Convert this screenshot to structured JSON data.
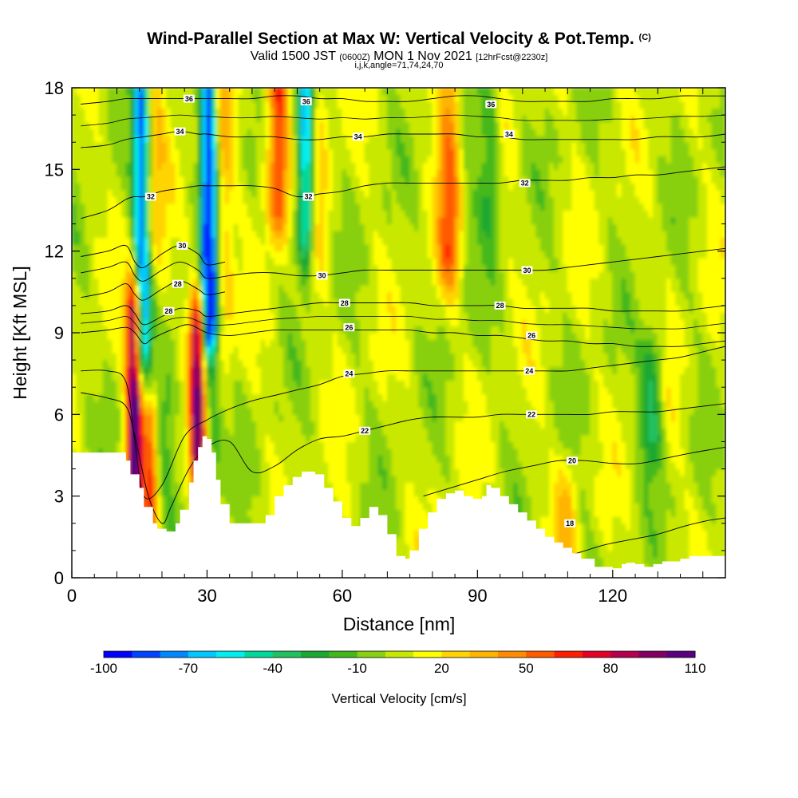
{
  "header": {
    "title_main": "Wind-Parallel Section at Max W: Vertical Velocity & Pot.Temp.",
    "title_mark": "(C)",
    "valid_prefix": "Valid 1500 JST",
    "valid_z": "(0600Z)",
    "valid_date": "MON 1 Nov 2021",
    "valid_fcst": "[12hrFcst@2230z]",
    "indices": "i,j,k,angle=71,74,24,70"
  },
  "colors": {
    "scale": [
      "#0000ff",
      "#0044ff",
      "#0088ff",
      "#00c8ff",
      "#00eeee",
      "#00d89a",
      "#22c060",
      "#1aa830",
      "#44b81a",
      "#88d010",
      "#c8e800",
      "#ffff00",
      "#ffd400",
      "#ffb400",
      "#ff8c00",
      "#ff5a00",
      "#ff1e00",
      "#e60026",
      "#b4004e",
      "#820064",
      "#5a0080"
    ],
    "contour": "#000000",
    "terrain_mask": "#ffffff",
    "panel_border": "#000000"
  },
  "chart_data": {
    "type": "heatmap",
    "xlabel": "Distance [nm]",
    "ylabel": "Height [Kft MSL]",
    "xlim": [
      0,
      145
    ],
    "ylim": [
      0,
      18
    ],
    "x_ticks": [
      0,
      30,
      60,
      90,
      120
    ],
    "y_ticks": [
      0,
      3,
      6,
      9,
      12,
      15,
      18
    ],
    "colorbar": {
      "label": "Vertical Velocity [cm/s]",
      "min": -100,
      "max": 110,
      "step": 10,
      "tick_values": [
        -100,
        -70,
        -40,
        -10,
        20,
        50,
        80,
        110
      ],
      "tick_labels": [
        "-100",
        "-70",
        "-40",
        "-10",
        "20",
        "50",
        "80",
        "110"
      ]
    },
    "updraft_plumes": [
      {
        "x": 14,
        "y0": 2.0,
        "y1": 9.5,
        "w_cm_s": 110
      },
      {
        "x": 17.5,
        "y0": 2.0,
        "y1": 5.5,
        "w_cm_s": 70
      },
      {
        "x": 28,
        "y0": 4.5,
        "y1": 9.0,
        "w_cm_s": 90
      },
      {
        "x": 46,
        "y0": 14.0,
        "y1": 18.0,
        "w_cm_s": 60
      },
      {
        "x": 84,
        "y0": 12.0,
        "y1": 18.0,
        "w_cm_s": 45
      },
      {
        "x": 110,
        "y0": 1.0,
        "y1": 3.0,
        "w_cm_s": 25
      }
    ],
    "downdraft_plumes": [
      {
        "x": 15.5,
        "y0": 9.0,
        "y1": 18.0,
        "w_cm_s": -80
      },
      {
        "x": 30.5,
        "y0": 9.5,
        "y1": 18.0,
        "w_cm_s": -100
      },
      {
        "x": 52,
        "y0": 13.0,
        "y1": 18.0,
        "w_cm_s": -70
      },
      {
        "x": 93,
        "y0": 14.0,
        "y1": 18.0,
        "w_cm_s": -30
      },
      {
        "x": 129,
        "y0": 5.5,
        "y1": 7.5,
        "w_cm_s": -40
      }
    ],
    "terrain_kft": {
      "x": [
        0,
        7,
        12,
        13,
        15,
        16,
        18,
        19,
        21,
        23,
        24,
        26,
        27,
        28,
        29,
        30,
        31,
        32,
        33,
        35,
        40,
        43,
        45,
        47,
        49,
        51,
        54,
        56,
        58,
        60,
        62,
        64,
        66,
        68,
        70,
        72,
        74,
        75,
        77,
        79,
        81,
        83,
        85,
        87,
        89,
        91,
        92,
        93,
        95,
        97,
        99,
        101,
        103,
        105,
        107,
        109,
        111,
        113,
        116,
        120,
        122,
        123,
        125,
        127,
        129,
        131,
        133,
        135,
        137,
        145
      ],
      "y": [
        4.6,
        4.6,
        4.3,
        3.8,
        3.3,
        2.6,
        2.0,
        1.8,
        1.7,
        2.0,
        2.5,
        3.5,
        4.3,
        4.8,
        5.2,
        5.1,
        4.6,
        3.6,
        2.7,
        2.0,
        2.0,
        2.3,
        3.0,
        3.4,
        3.7,
        3.9,
        3.8,
        3.3,
        2.8,
        2.2,
        1.9,
        2.2,
        2.6,
        2.3,
        1.6,
        0.8,
        0.7,
        1.0,
        1.8,
        2.4,
        2.9,
        3.1,
        3.2,
        3.0,
        2.9,
        3.0,
        3.4,
        3.3,
        3.0,
        2.7,
        2.4,
        2.1,
        1.8,
        1.5,
        1.3,
        1.1,
        0.9,
        0.7,
        0.4,
        0.35,
        0.5,
        0.55,
        0.5,
        0.4,
        0.5,
        0.6,
        0.6,
        0.7,
        0.8,
        1.0
      ]
    },
    "theta_contours": [
      {
        "label": "18",
        "x": [
          108,
          112,
          118,
          124,
          130,
          136,
          141,
          145
        ],
        "y": [
          0.8,
          0.9,
          1.2,
          1.4,
          1.6,
          1.9,
          2.1,
          2.2
        ],
        "label_x": 110.5,
        "label_y": 2.0
      },
      {
        "label": "20",
        "x": [
          78,
          84,
          90,
          96,
          102,
          108,
          114,
          120,
          126,
          132,
          138,
          145
        ],
        "y": [
          3.0,
          3.3,
          3.6,
          3.9,
          4.1,
          4.3,
          4.3,
          4.2,
          4.2,
          4.4,
          4.6,
          4.8
        ],
        "label_x": 111,
        "label_y": 4.3
      },
      {
        "label": "22",
        "x": [
          2,
          8,
          12,
          14,
          17,
          20,
          22,
          26,
          30,
          35,
          40,
          45,
          50,
          55,
          60,
          65,
          70,
          75,
          80,
          85,
          90,
          95,
          100,
          105,
          110,
          115,
          120,
          125,
          130,
          135,
          140,
          145
        ],
        "y": [
          6.8,
          6.6,
          6.3,
          5.2,
          3.0,
          2.0,
          2.6,
          4.0,
          4.8,
          5.0,
          3.9,
          4.1,
          4.7,
          5.1,
          5.2,
          5.4,
          5.6,
          5.8,
          5.9,
          5.9,
          5.9,
          6.0,
          6.0,
          6.0,
          6.0,
          6.0,
          6.1,
          6.1,
          6.1,
          6.2,
          6.3,
          6.4
        ],
        "label_x": 65,
        "label_y": 5.4
      },
      {
        "label": "24",
        "x": [
          2,
          8,
          12,
          14,
          16,
          20,
          25,
          30,
          35,
          40,
          45,
          50,
          55,
          60,
          65,
          70,
          75,
          80,
          85,
          90,
          95,
          100,
          105,
          110,
          115,
          120,
          125,
          130,
          135,
          140,
          145
        ],
        "y": [
          7.6,
          7.6,
          7.2,
          5.0,
          3.0,
          3.4,
          5.2,
          5.8,
          6.2,
          6.5,
          6.7,
          6.9,
          7.1,
          7.4,
          7.5,
          7.6,
          7.6,
          7.6,
          7.6,
          7.6,
          7.6,
          7.6,
          7.6,
          7.6,
          7.7,
          7.8,
          7.9,
          8.0,
          8.1,
          8.3,
          8.5
        ],
        "label_x": 61.5,
        "label_y": 7.5
      },
      {
        "label": "26",
        "x": [
          2,
          8,
          12,
          14,
          16,
          18,
          22,
          26,
          30,
          35,
          40,
          45,
          50,
          55,
          60,
          65,
          70,
          75,
          80,
          85,
          90,
          95,
          100,
          105,
          110,
          115,
          120,
          125,
          130,
          135,
          140,
          145
        ],
        "y": [
          9.0,
          9.1,
          9.2,
          9.0,
          8.6,
          8.8,
          9.1,
          9.3,
          9.0,
          8.9,
          9.0,
          9.1,
          9.1,
          9.1,
          9.1,
          9.1,
          9.1,
          9.1,
          9.0,
          9.0,
          8.9,
          8.9,
          8.8,
          8.7,
          8.7,
          8.6,
          8.6,
          8.5,
          8.5,
          8.5,
          8.6,
          8.7
        ],
        "label_x": 61.5,
        "label_y": 9.2
      },
      {
        "label": "28",
        "x": [
          2,
          8,
          12,
          14,
          16,
          20,
          24,
          28,
          30,
          35,
          40,
          45,
          50,
          55,
          60,
          65,
          70,
          75,
          80,
          85,
          90,
          95,
          100,
          105,
          110,
          115,
          120,
          125,
          130,
          135,
          140,
          145
        ],
        "y": [
          9.7,
          9.8,
          10.0,
          9.7,
          9.3,
          9.6,
          9.9,
          9.8,
          9.6,
          9.7,
          9.8,
          9.9,
          10.0,
          10.1,
          10.1,
          10.1,
          10.1,
          10.1,
          10.0,
          10.0,
          10.0,
          10.0,
          9.9,
          9.9,
          9.9,
          9.9,
          9.8,
          9.8,
          9.8,
          9.8,
          9.9,
          10.0
        ],
        "label_x": 60.5,
        "label_y": 10.1
      },
      {
        "label": "28",
        "x": [
          2,
          8,
          12,
          14,
          16,
          20,
          24,
          28,
          30,
          34
        ],
        "y": [
          10.3,
          10.5,
          10.8,
          10.4,
          10.2,
          10.6,
          10.9,
          10.6,
          10.4,
          10.5
        ],
        "label_x": 23.5,
        "label_y": 10.8
      },
      {
        "label": "30",
        "x": [
          2,
          8,
          12,
          14,
          16,
          20,
          24,
          28,
          30,
          35,
          40,
          45,
          50,
          55,
          60,
          65,
          70,
          75,
          80,
          85,
          90,
          95,
          100,
          105,
          110,
          115,
          120,
          125,
          130,
          135,
          140,
          145
        ],
        "y": [
          11.2,
          11.4,
          11.6,
          11.1,
          10.9,
          11.3,
          11.6,
          11.3,
          11.0,
          11.1,
          11.2,
          11.2,
          11.1,
          11.1,
          11.2,
          11.3,
          11.3,
          11.3,
          11.3,
          11.3,
          11.3,
          11.3,
          11.3,
          11.3,
          11.4,
          11.5,
          11.6,
          11.7,
          11.8,
          11.9,
          12.0,
          12.1
        ],
        "label_x": 55.5,
        "label_y": 11.1
      },
      {
        "label": "30",
        "x": [
          2,
          8,
          12,
          14,
          16,
          20,
          24,
          28,
          30,
          34
        ],
        "y": [
          11.8,
          12.0,
          12.2,
          11.6,
          11.4,
          11.9,
          12.2,
          11.9,
          11.5,
          11.6
        ],
        "label_x": 24.5,
        "label_y": 12.2
      },
      {
        "label": "32",
        "x": [
          2,
          8,
          12,
          14,
          16,
          20,
          24,
          28,
          30,
          35,
          40,
          45,
          50,
          55,
          60,
          65,
          70,
          75,
          80,
          85,
          90,
          95,
          100,
          105,
          110,
          115,
          120,
          125,
          130,
          135,
          140,
          145
        ],
        "y": [
          13.2,
          13.5,
          13.9,
          14.0,
          14.0,
          14.2,
          14.3,
          14.4,
          14.4,
          14.4,
          14.4,
          14.3,
          14.0,
          14.1,
          14.2,
          14.4,
          14.5,
          14.5,
          14.5,
          14.5,
          14.5,
          14.5,
          14.6,
          14.6,
          14.6,
          14.7,
          14.7,
          14.8,
          14.8,
          14.9,
          15.0,
          15.1
        ],
        "label_x": 100.5,
        "label_y": 14.5
      },
      {
        "label": "34",
        "x": [
          2,
          8,
          12,
          16,
          20,
          24,
          28,
          30,
          35,
          40,
          45,
          50,
          55,
          60,
          65,
          70,
          75,
          80,
          85,
          90,
          95,
          100,
          105,
          110,
          115,
          120,
          125,
          130,
          135,
          140,
          145
        ],
        "y": [
          15.8,
          15.9,
          16.1,
          16.2,
          16.3,
          16.4,
          16.3,
          16.3,
          16.2,
          16.2,
          16.2,
          16.1,
          16.1,
          16.2,
          16.2,
          16.3,
          16.3,
          16.3,
          16.3,
          16.2,
          16.2,
          16.1,
          16.1,
          16.1,
          16.1,
          16.1,
          16.1,
          16.2,
          16.2,
          16.2,
          16.3
        ],
        "label_x": 24,
        "label_y": 16.4
      },
      {
        "label": "36",
        "x": [
          2,
          8,
          12,
          16,
          20,
          24,
          28,
          30,
          35,
          40,
          45,
          50,
          55,
          60,
          65,
          70,
          75,
          80,
          85,
          90,
          95,
          100,
          105,
          110,
          115,
          120,
          125,
          130,
          135,
          140,
          145
        ],
        "y": [
          17.4,
          17.5,
          17.6,
          17.6,
          17.6,
          17.6,
          17.6,
          17.6,
          17.6,
          17.6,
          17.7,
          17.7,
          17.6,
          17.6,
          17.5,
          17.5,
          17.5,
          17.6,
          17.7,
          17.7,
          17.6,
          17.5,
          17.5,
          17.5,
          17.5,
          17.6,
          17.6,
          17.6,
          17.7,
          17.7,
          17.7
        ],
        "label_x": 26,
        "label_y": 17.6
      }
    ],
    "extra_contour_labels": [
      {
        "label": "36",
        "x": 52,
        "y": 17.5
      },
      {
        "label": "36",
        "x": 93,
        "y": 17.4
      },
      {
        "label": "34",
        "x": 63.5,
        "y": 16.2
      },
      {
        "label": "34",
        "x": 97,
        "y": 16.3
      },
      {
        "label": "32",
        "x": 17.5,
        "y": 14.0
      },
      {
        "label": "32",
        "x": 52.5,
        "y": 14.0
      },
      {
        "label": "30",
        "x": 101,
        "y": 11.3
      },
      {
        "label": "28",
        "x": 95,
        "y": 10.0
      },
      {
        "label": "26",
        "x": 102,
        "y": 8.9
      },
      {
        "label": "24",
        "x": 101.5,
        "y": 7.6
      },
      {
        "label": "22",
        "x": 102,
        "y": 6.0
      },
      {
        "label": "28",
        "x": 21.5,
        "y": 9.8
      }
    ]
  }
}
